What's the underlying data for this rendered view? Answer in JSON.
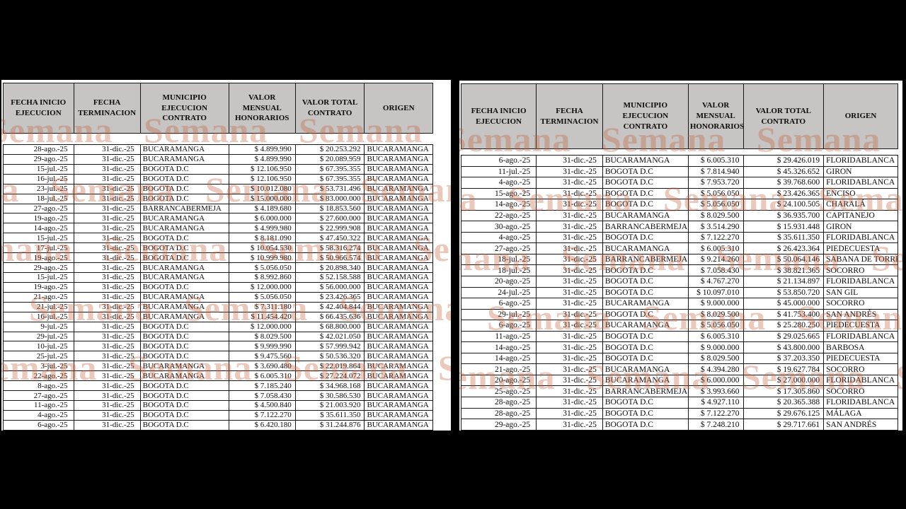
{
  "page": {
    "background": "#000000",
    "header_bg": "#c7c5c3",
    "border_color": "#161616",
    "watermark_color": "rgba(193,96,60,0.34)"
  },
  "watermark": {
    "text": "Semana"
  },
  "tables": [
    {
      "id": "left",
      "headers": [
        "FECHA INICIO\nEJECUCION",
        "FECHA\nTERMINACION",
        "MUNICIPIO\nEJECUCION\nCONTRATO",
        "VALOR\nMENSUAL\nHONORARIOS",
        "VALOR TOTAL\nCONTRATO",
        "ORIGEN"
      ],
      "rows": [
        [
          "28-ago.-25",
          "31-dic.-25",
          "BUCARAMANGA",
          "$ 4.899.990",
          "$ 20.253.292",
          "BUCARAMANGA"
        ],
        [
          "29-ago.-25",
          "31-dic.-25",
          "BUCARAMANGA",
          "$ 4.899.990",
          "$ 20.089.959",
          "BUCARAMANGA"
        ],
        [
          "15-jul.-25",
          "31-dic.-25",
          "BOGOTA D.C",
          "$ 12.106.950",
          "$ 67.395.355",
          "BUCARAMANGA"
        ],
        [
          "16-jul.-25",
          "31-dic.-25",
          "BOGOTA D.C",
          "$ 12.106.950",
          "$ 67.395.355",
          "BUCARAMANGA"
        ],
        [
          "23-jul.-25",
          "31-dic.-25",
          "BOGOTA D.C",
          "$ 10.012.080",
          "$ 53.731.496",
          "BUCARAMANGA"
        ],
        [
          "18-jul.-25",
          "31-dic.-25",
          "BOGOTA D.C",
          "$ 15.000.000",
          "$ 83.000.000",
          "BUCARAMANGA"
        ],
        [
          "27-ago.-25",
          "31-dic.-25",
          "BARRANCABERMEJA",
          "$ 4.189.680",
          "$ 18.853.560",
          "BUCARAMANGA"
        ],
        [
          "19-ago.-25",
          "31-dic.-25",
          "BUCARAMANGA",
          "$ 6.000.000",
          "$ 27.600.000",
          "BUCARAMANGA"
        ],
        [
          "14-ago.-25",
          "31-dic.-25",
          "BUCARAMANGA",
          "$ 4.999.980",
          "$ 22.999.908",
          "BUCARAMANGA"
        ],
        [
          "15-jul.-25",
          "31-dic.-25",
          "BOGOTA D.C",
          "$ 8.181.090",
          "$ 47.450.322",
          "BUCARAMANGA"
        ],
        [
          "17-jul.-25",
          "31-dic.-25",
          "BOGOTA D.C",
          "$ 10.054.530",
          "$ 58.316.274",
          "BUCARAMANGA"
        ],
        [
          "19-ago.-25",
          "31-dic.-25",
          "BOGOTA D.C",
          "$ 10.999.980",
          "$ 50.966.574",
          "BUCARAMANGA"
        ],
        [
          "29-ago.-25",
          "31-dic.-25",
          "BUCARAMANGA",
          "$ 5.056.050",
          "$ 20.898.340",
          "BUCARAMANGA"
        ],
        [
          "15-jul.-25",
          "31-dic.-25",
          "BUCARAMANGA",
          "$ 8.992.860",
          "$ 52.158.588",
          "BUCARAMANGA"
        ],
        [
          "19-ago.-25",
          "31-dic.-25",
          "BOGOTA D.C",
          "$ 12.000.000",
          "$ 56.000.000",
          "BUCARAMANGA"
        ],
        [
          "21-ago.-25",
          "31-dic.-25",
          "BUCARAMANGA",
          "$ 5.056.050",
          "$ 23.426.365",
          "BUCARAMANGA"
        ],
        [
          "21-jul.-25",
          "31-dic.-25",
          "BUCARAMANGA",
          "$ 7.311.180",
          "$ 42.404.844",
          "BUCARAMANGA"
        ],
        [
          "16-jul.-25",
          "31-dic.-25",
          "BUCARAMANGA",
          "$ 11.454.420",
          "$ 66.435.636",
          "BUCARAMANGA"
        ],
        [
          "9-jul.-25",
          "31-dic.-25",
          "BOGOTA D.C",
          "$ 12.000.000",
          "$ 68.800.000",
          "BUCARAMANGA"
        ],
        [
          "29-jul.-25",
          "31-dic.-25",
          "BOGOTA D.C",
          "$ 8.029.500",
          "$ 42.021.050",
          "BUCARAMANGA"
        ],
        [
          "10-jul.-25",
          "31-dic.-25",
          "BOGOTA D.C",
          "$ 9.999.990",
          "$ 57.999.942",
          "BUCARAMANGA"
        ],
        [
          "25-jul.-25",
          "31-dic.-25",
          "BOGOTA D.C",
          "$ 9.475.560",
          "$ 50.536.320",
          "BUCARAMANGA"
        ],
        [
          "3-jul.-25",
          "31-dic.-25",
          "BUCARAMANGA",
          "$ 3.690.480",
          "$ 22.019.864",
          "BUCARAMANGA"
        ],
        [
          "22-ago.-25",
          "31-dic.-25",
          "BUCARAMANGA",
          "$ 6.005.310",
          "$ 27.224.072",
          "BUCARAMANGA"
        ],
        [
          "8-ago.-25",
          "31-dic.-25",
          "BOGOTA D.C",
          "$ 7.185.240",
          "$ 34.968.168",
          "BUCARAMANGA"
        ],
        [
          "27-ago.-25",
          "31-dic.-25",
          "BOGOTA D.C",
          "$ 7.058.430",
          "$ 30.586.530",
          "BUCARAMANGA"
        ],
        [
          "11-ago.-25",
          "31-dic.-25",
          "BOGOTA D.C",
          "$ 4.500.840",
          "$ 21.003.920",
          "BUCARAMANGA"
        ],
        [
          "4-ago.-25",
          "31-dic.-25",
          "BOGOTA D.C",
          "$ 7.122.270",
          "$ 35.611.350",
          "BUCARAMANGA"
        ],
        [
          "6-ago.-25",
          "31-dic.-25",
          "BOGOTA D.C",
          "$ 6.420.180",
          "$ 31.244.876",
          "BUCARAMANGA"
        ]
      ]
    },
    {
      "id": "right",
      "headers": [
        "FECHA INICIO\nEJECUCION",
        "FECHA\nTERMINACION",
        "MUNICIPIO\nEJECUCION\nCONTRATO",
        "VALOR\nMENSUAL\nHONORARIOS",
        "VALOR TOTAL\nCONTRATO",
        "ORIGEN"
      ],
      "rows": [
        [
          "6-ago.-25",
          "31-dic.-25",
          "BUCARAMANGA",
          "$ 6.005.310",
          "$ 29.426.019",
          "FLORIDABLANCA"
        ],
        [
          "11-jul.-25",
          "31-dic.-25",
          "BOGOTA D.C",
          "$ 7.814.940",
          "$ 45.326.652",
          "GIRON"
        ],
        [
          "4-ago.-25",
          "31-dic.-25",
          "BOGOTA D.C",
          "$ 7.953.720",
          "$ 39.768.600",
          "FLORIDABLANCA"
        ],
        [
          "15-ago.-25",
          "31-dic.-25",
          "BOGOTA D.C",
          "$ 5.056.050",
          "$ 23.426.365",
          "ENCISO"
        ],
        [
          "14-ago.-25",
          "31-dic.-25",
          "BOGOTA D.C",
          "$ 5.056.050",
          "$ 24.100.505",
          "CHARALÁ"
        ],
        [
          "22-ago.-25",
          "31-dic.-25",
          "BUCARAMANGA",
          "$ 8.029.500",
          "$ 36.935.700",
          "CAPITANEJO"
        ],
        [
          "30-ago.-25",
          "31-dic.-25",
          "BARRANCABERMEJA",
          "$ 3.514.290",
          "$ 15.931.448",
          "GIRON"
        ],
        [
          "4-ago.-25",
          "31-dic.-25",
          "BOGOTA D.C",
          "$ 7.122.270",
          "$ 35.611.350",
          "FLORIDABLANCA"
        ],
        [
          "27-ago.-25",
          "31-dic.-25",
          "BUCARAMANGA",
          "$ 6.005.310",
          "$ 26.423.364",
          "PIEDECUESTA"
        ],
        [
          "18-jul.-25",
          "31-dic.-25",
          "BARRANCABERMEJA",
          "$ 9.214.260",
          "$ 50.064.146",
          "SABANA DE TORRES"
        ],
        [
          "18-jul.-25",
          "31-dic.-25",
          "BOGOTA D.C",
          "$ 7.058.430",
          "$ 38.821.365",
          "SOCORRO"
        ],
        [
          "20-ago.-25",
          "31-dic.-25",
          "BOGOTA D.C",
          "$ 4.767.270",
          "$ 21.134.897",
          "FLORIDABLANCA"
        ],
        [
          "24-jul.-25",
          "31-dic.-25",
          "BOGOTA D.C",
          "$ 10.097.010",
          "$ 53.850.720",
          "SAN GIL"
        ],
        [
          "6-ago.-25",
          "31-dic.-25",
          "BUCARAMANGA",
          "$ 9.000.000",
          "$ 45.000.000",
          "SOCORRO"
        ],
        [
          "29-jul.-25",
          "31-dic.-25",
          "BOGOTA D.C",
          "$ 8.029.500",
          "$ 41.753.400",
          "SAN ANDRÉS"
        ],
        [
          "6-ago.-25",
          "31-dic.-25",
          "BUCARAMANGA",
          "$ 5.056.050",
          "$ 25.280.250",
          "PIEDECUESTA"
        ],
        [
          "11-ago.-25",
          "31-dic.-25",
          "BOGOTA D.C",
          "$ 6.005.310",
          "$ 29.025.665",
          "FLORIDABLANCA"
        ],
        [
          "14-ago.-25",
          "31-dic.-25",
          "BOGOTA D.C",
          "$ 9.000.000",
          "$ 43.800.000",
          "BARBOSA"
        ],
        [
          "14-ago.-25",
          "31-dic.-25",
          "BOGOTA D.C",
          "$ 8.029.500",
          "$ 37.203.350",
          "PIEDECUESTA"
        ],
        [
          "21-ago.-25",
          "31-dic.-25",
          "BUCARAMANGA",
          "$ 4.394.280",
          "$ 19.627.784",
          "SOCORRO"
        ],
        [
          "20-ago.-25",
          "31-dic.-25",
          "BUCARAMANGA",
          "$ 6.000.000",
          "$ 27.000.000",
          "FLORIDABLANCA"
        ],
        [
          "25-ago.-25",
          "31-dic.-25",
          "BARRANCABERMEJA",
          "$ 3.993.660",
          "$ 17.305.860",
          "SOCORRO"
        ],
        [
          "28-ago.-25",
          "31-dic.-25",
          "BOGOTA D.C",
          "$ 4.927.110",
          "$ 20.365.388",
          "FLORIDABLANCA"
        ],
        [
          "28-ago.-25",
          "31-dic.-25",
          "BOGOTA D.C",
          "$ 7.122.270",
          "$ 29.676.125",
          "MÁLAGA"
        ],
        [
          "29-ago.-25",
          "31-dic.-25",
          "BOGOTA D.C",
          "$ 7.248.210",
          "$ 29.717.661",
          "SAN ANDRÉS"
        ]
      ]
    }
  ]
}
